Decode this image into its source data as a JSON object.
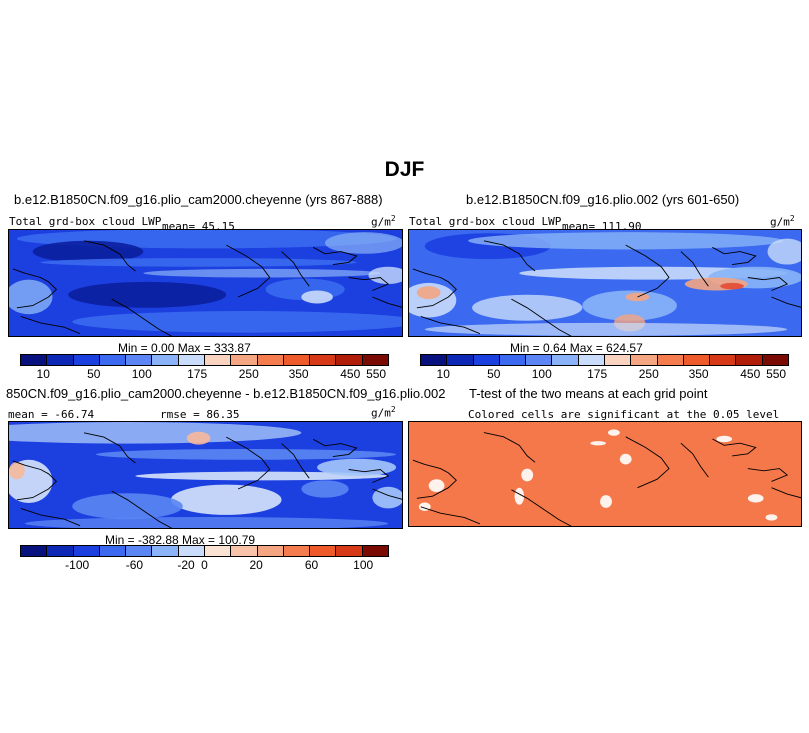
{
  "figure": {
    "title": "DJF",
    "units": "g/m",
    "units_sup": "2"
  },
  "panels": {
    "p1": {
      "title": "b.e12.B1850CN.f09_g16.plio_cam2000.cheyenne (yrs 867-888)",
      "variable": "Total grd-box cloud LWP",
      "mean": "mean=  45.15",
      "minmax": "Min =    0.00  Max =  333.87",
      "colors": {
        "base": "#1c3fe0",
        "dark": "#0a1f9f",
        "mid": "#3b6af0",
        "light": "#8ab4f7",
        "vlight": "#c9dcfb"
      }
    },
    "p2": {
      "title": "b.e12.B1850CN.f09_g16.plio.002 (yrs 601-650)",
      "variable": "Total grd-box cloud LWP",
      "mean": "mean=  111.90",
      "minmax": "Min =    0.64  Max =  624.57",
      "colors": {
        "base": "#3b6af0",
        "dark": "#1c3fe0",
        "light": "#8ab4f7",
        "vlight": "#c9dcfb",
        "warm": "#f4a582",
        "hot": "#e34a33"
      }
    },
    "p3": {
      "title": "850CN.f09_g16.plio_cam2000.cheyenne - b.e12.B1850CN.f09_g16.plio.002",
      "mean": "mean = -66.74",
      "rmse": "rmse =   86.35",
      "minmax": "Min = -382.88  Max = 100.79",
      "colors": {
        "base": "#1c3fe0",
        "mid": "#5b86f3",
        "light": "#a6c6f9",
        "vlight": "#d6e4fb",
        "warm": "#f7b89a"
      }
    },
    "p4": {
      "title": "T-test of the two means at each grid point",
      "subtitle": "Colored cells are significant at the 0.05 level",
      "fill": "#f4784a"
    }
  },
  "colorbar_lwp": {
    "colors": [
      "#08127e",
      "#0d28b5",
      "#1c3fe0",
      "#3b6af0",
      "#5b86f3",
      "#8ab4f7",
      "#c9dcfb",
      "#f8d4c0",
      "#f4a582",
      "#f47c4e",
      "#ef5a2b",
      "#d73a18",
      "#b01d08",
      "#7a0b03"
    ],
    "tick_labels": [
      "10",
      "50",
      "100",
      "175",
      "250",
      "350",
      "450",
      "550"
    ]
  },
  "colorbar_diff": {
    "colors": [
      "#08127e",
      "#0d28b5",
      "#1c3fe0",
      "#3b6af0",
      "#5b86f3",
      "#8ab4f7",
      "#c9dcfb",
      "#fbe3d4",
      "#f8c3a8",
      "#f4a582",
      "#f47c4e",
      "#ef5a2b",
      "#d73a18",
      "#7a0b03"
    ],
    "tick_labels": [
      "-100",
      "-60",
      "-20",
      "0",
      "20",
      "60",
      "100"
    ]
  }
}
